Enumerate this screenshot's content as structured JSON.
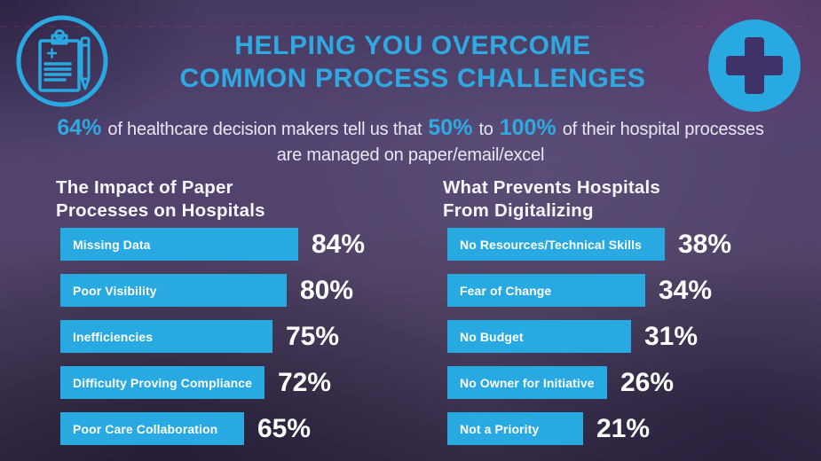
{
  "header": {
    "title_line1": "HELPING YOU OVERCOME",
    "title_line2": "COMMON PROCESS CHALLENGES"
  },
  "intro": {
    "stat1": "64%",
    "text1": "of healthcare decision makers tell us that",
    "stat2": "50%",
    "text2": "to",
    "stat3": "100%",
    "text3": "of their hospital processes are managed on paper/email/excel"
  },
  "icons": {
    "left": "clipboard-pen-icon",
    "right": "medical-cross-icon"
  },
  "colors": {
    "accent_blue": "#29a9e1",
    "title_blue": "#2fa9e2",
    "cross_inner_purple": "#413169",
    "background_purple": "#4e4068",
    "text_white": "#ffffff"
  },
  "chart_data": [
    {
      "type": "bar",
      "orientation": "horizontal",
      "title": "The Impact of Paper Processes on Hospitals",
      "title_line1": "The Impact of Paper",
      "title_line2": "Processes on Hospitals",
      "categories": [
        "Missing Data",
        "Poor Visibility",
        "Inefficiencies",
        "Difficulty Proving Compliance",
        "Poor Care Collaboration"
      ],
      "values": [
        84,
        80,
        75,
        72,
        65
      ],
      "unit": "%",
      "bar_color": "#29a9e1",
      "value_label_position": "right-of-bar",
      "category_label_position": "inside-bar-left",
      "xlim": [
        0,
        100
      ],
      "grid": false,
      "legend": false
    },
    {
      "type": "bar",
      "orientation": "horizontal",
      "title": "What Prevents Hospitals From Digitalizing",
      "title_line1": "What Prevents Hospitals",
      "title_line2": "From Digitalizing",
      "categories": [
        "No Resources/Technical Skills",
        "Fear of Change",
        "No Budget",
        "No Owner for Initiative",
        "Not a Priority"
      ],
      "values": [
        38,
        34,
        31,
        26,
        21
      ],
      "unit": "%",
      "bar_color": "#29a9e1",
      "value_label_position": "right-of-bar",
      "category_label_position": "inside-bar-left",
      "xlim": [
        0,
        100
      ],
      "grid": false,
      "legend": false
    }
  ]
}
